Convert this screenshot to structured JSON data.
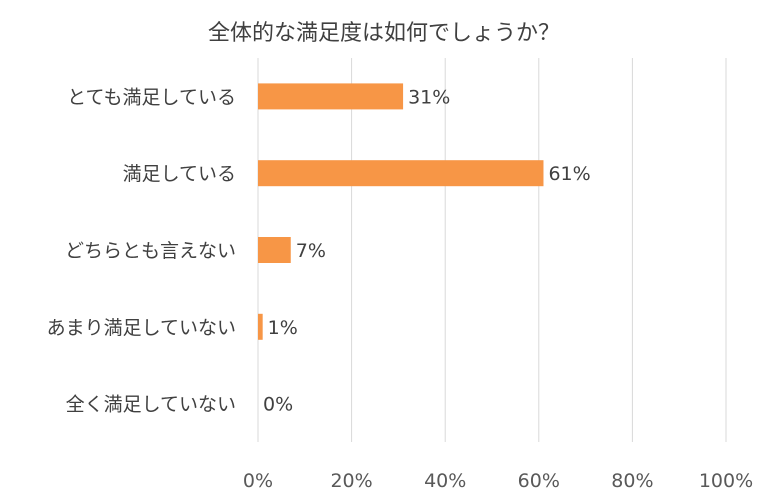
{
  "chart_data": {
    "type": "bar",
    "orientation": "horizontal",
    "title": "全体的な満足度は如何でしょうか？",
    "categories": [
      "とても満足している",
      "満足している",
      "どちらとも言えない",
      "あまり満足していない",
      "全く満足していない"
    ],
    "values": [
      31,
      61,
      7,
      1,
      0
    ],
    "data_labels": [
      "31%",
      "61%",
      "7%",
      "1%",
      "0%"
    ],
    "x_ticks": [
      "0%",
      "20%",
      "40%",
      "60%",
      "80%",
      "100%"
    ],
    "xlim": [
      0,
      100
    ],
    "grid": true,
    "bar_color": "#F79646"
  }
}
